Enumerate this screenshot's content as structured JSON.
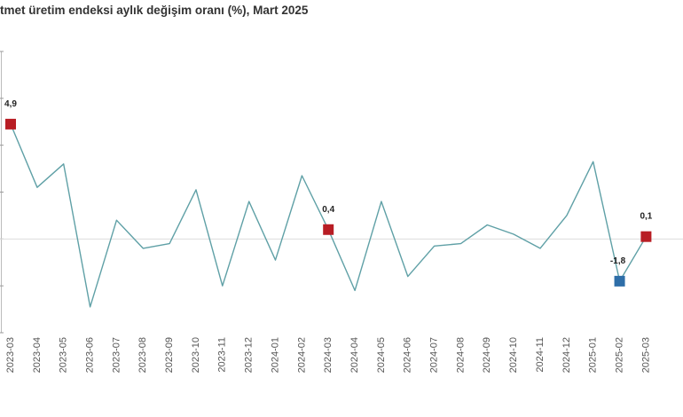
{
  "title": "tmet üretim endeksi aylık değişim oranı (%), Mart 2025",
  "chart_data": {
    "type": "line",
    "title": "tmet üretim endeksi aylık değişim oranı (%), Mart 2025",
    "xlabel": "",
    "ylabel": "",
    "ylim": [
      -4.0,
      8.0
    ],
    "grid": false,
    "legend": "none",
    "categories": [
      "2023-03",
      "2023-04",
      "2023-05",
      "2023-06",
      "2023-07",
      "2023-08",
      "2023-09",
      "2023-10",
      "2023-11",
      "2023-12",
      "2024-01",
      "2024-02",
      "2024-03",
      "2024-04",
      "2024-05",
      "2024-06",
      "2024-07",
      "2024-08",
      "2024-09",
      "2024-10",
      "2024-11",
      "2024-12",
      "2025-01",
      "2025-02",
      "2025-03"
    ],
    "series": [
      {
        "values": [
          4.9,
          2.2,
          3.2,
          -2.9,
          0.8,
          -0.4,
          -0.2,
          2.1,
          -2.0,
          1.6,
          -0.9,
          2.7,
          0.4,
          -2.2,
          1.6,
          -1.6,
          -0.3,
          -0.2,
          0.6,
          0.2,
          -0.4,
          1.0,
          3.3,
          -1.8,
          0.1
        ],
        "color": "#5fa0a6"
      }
    ],
    "zero_line": 0,
    "highlights": [
      {
        "index": 0,
        "label": "4,9",
        "color": "#b81d24"
      },
      {
        "index": 12,
        "label": "0,4",
        "color": "#b81d24"
      },
      {
        "index": 23,
        "label": "-1,8",
        "color": "#2e6ea8"
      },
      {
        "index": 24,
        "label": "0,1",
        "color": "#b81d24"
      }
    ]
  }
}
